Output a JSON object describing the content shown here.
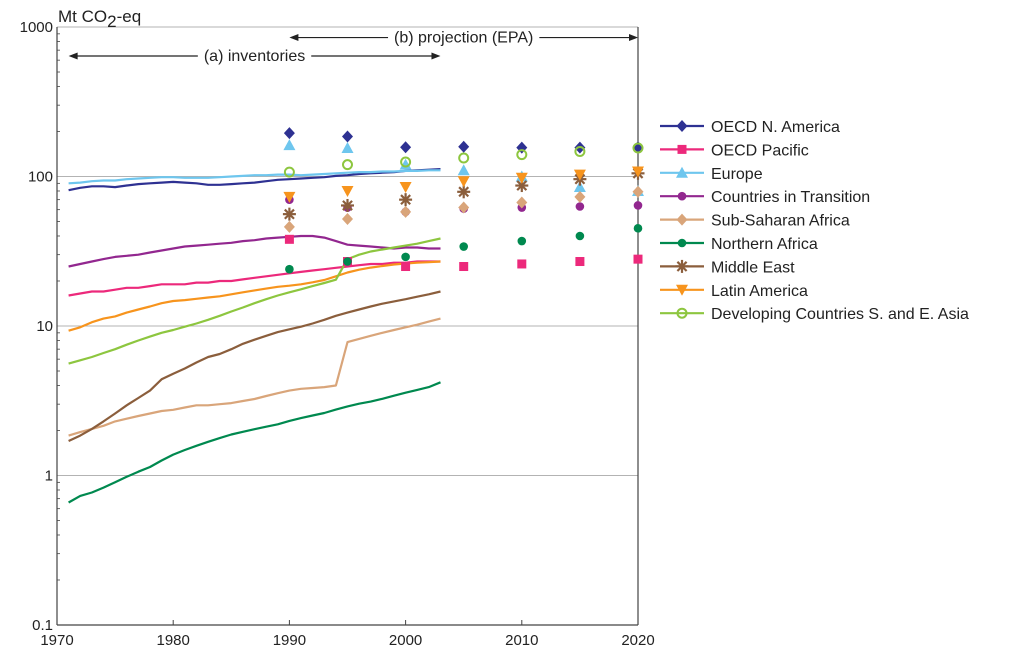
{
  "chart_data": {
    "type": "line",
    "ylabel": {
      "base": "Mt CO",
      "sub": "2",
      "suffix": "-eq"
    },
    "yscale": "log",
    "ylim": [
      0.1,
      1000
    ],
    "xlim": [
      1970,
      2020
    ],
    "yticks": [
      "0.1",
      "1",
      "10",
      "100",
      "1000"
    ],
    "xticks": [
      "1970",
      "1980",
      "1990",
      "2000",
      "2010",
      "2020"
    ],
    "grid": "horizontal",
    "legend": "right",
    "annotations": {
      "projection": {
        "label": "(b) projection (EPA)",
        "from": 1990,
        "to": 2020,
        "y": 850
      },
      "inventories": {
        "label": "(a) inventories",
        "from": 1971,
        "to": 2003,
        "y": 640
      }
    },
    "series": [
      {
        "name": "OECD N. America",
        "color": "#2e3192",
        "marker": "diamond",
        "line_x": [
          1971,
          1972,
          1973,
          1974,
          1975,
          1976,
          1977,
          1978,
          1979,
          1980,
          1981,
          1982,
          1983,
          1984,
          1985,
          1986,
          1987,
          1988,
          1989,
          1990,
          1991,
          1992,
          1993,
          1994,
          1995,
          1996,
          1997,
          1998,
          1999,
          2000,
          2001,
          2002,
          2003
        ],
        "line_y": [
          81,
          84,
          86,
          86,
          85,
          87,
          89,
          90,
          91,
          92,
          91,
          90,
          88,
          88,
          89,
          90,
          91,
          93,
          95,
          96,
          97,
          98,
          99,
          101,
          102,
          104,
          105,
          106,
          107,
          109,
          110,
          111,
          112
        ],
        "proj_x": [
          1990,
          1995,
          2000,
          2005,
          2010,
          2015,
          2020
        ],
        "proj_y": [
          195,
          185,
          157,
          158,
          156,
          156,
          157
        ]
      },
      {
        "name": "OECD Pacific",
        "color": "#ec297b",
        "marker": "square",
        "line_x": [
          1971,
          1972,
          1973,
          1974,
          1975,
          1976,
          1977,
          1978,
          1979,
          1980,
          1981,
          1982,
          1983,
          1984,
          1985,
          1986,
          1987,
          1988,
          1989,
          1990,
          1991,
          1992,
          1993,
          1994,
          1995,
          1996,
          1997,
          1998,
          1999,
          2000,
          2001,
          2002,
          2003
        ],
        "line_y": [
          16,
          16.5,
          17,
          17,
          17.5,
          18,
          18,
          18.5,
          19,
          19,
          19,
          19.5,
          19.5,
          20,
          20,
          20.5,
          21,
          21.5,
          22,
          22.5,
          23,
          23.5,
          24,
          24.5,
          25,
          25.5,
          26,
          26,
          26.5,
          26.5,
          27,
          27,
          27
        ],
        "proj_x": [
          1990,
          1995,
          2000,
          2005,
          2010,
          2015,
          2020
        ],
        "proj_y": [
          38,
          27,
          25,
          25,
          26,
          27,
          28
        ]
      },
      {
        "name": "Europe",
        "color": "#6ec6ee",
        "marker": "triangle-up",
        "line_x": [
          1971,
          1972,
          1973,
          1974,
          1975,
          1976,
          1977,
          1978,
          1979,
          1980,
          1981,
          1982,
          1983,
          1984,
          1985,
          1986,
          1987,
          1988,
          1989,
          1990,
          1991,
          1992,
          1993,
          1994,
          1995,
          1996,
          1997,
          1998,
          1999,
          2000,
          2001,
          2002,
          2003
        ],
        "line_y": [
          90,
          91,
          93,
          94,
          94,
          96,
          97,
          98,
          99,
          99,
          98,
          98,
          98,
          99,
          100,
          101,
          102,
          102,
          103,
          103,
          102,
          103,
          104,
          105,
          106,
          107,
          107,
          108,
          108,
          109,
          109,
          110,
          110
        ],
        "proj_x": [
          1990,
          1995,
          2000,
          2005,
          2010,
          2015,
          2020
        ],
        "proj_y": [
          162,
          155,
          120,
          110,
          100,
          85,
          80
        ]
      },
      {
        "name": "Countries in Transition",
        "color": "#92278f",
        "marker": "circle",
        "line_x": [
          1971,
          1972,
          1973,
          1974,
          1975,
          1976,
          1977,
          1978,
          1979,
          1980,
          1981,
          1982,
          1983,
          1984,
          1985,
          1986,
          1987,
          1988,
          1989,
          1990,
          1991,
          1992,
          1993,
          1994,
          1995,
          1996,
          1997,
          1998,
          1999,
          2000,
          2001,
          2002,
          2003
        ],
        "line_y": [
          25,
          26,
          27,
          28,
          29,
          29.5,
          30,
          31,
          32,
          33,
          34,
          34.5,
          35,
          35.5,
          36,
          37,
          37.5,
          38.5,
          39,
          39.5,
          40,
          40,
          39,
          37,
          35,
          34.5,
          34,
          33.5,
          33,
          33.5,
          33.5,
          33,
          33
        ],
        "proj_x": [
          1990,
          1995,
          2000,
          2005,
          2010,
          2015,
          2020
        ],
        "proj_y": [
          70,
          62,
          58,
          61,
          62,
          63,
          64
        ]
      },
      {
        "name": "Sub-Saharan Africa",
        "color": "#d9a57a",
        "marker": "diamond",
        "line_x": [
          1971,
          1972,
          1973,
          1974,
          1975,
          1976,
          1977,
          1978,
          1979,
          1980,
          1981,
          1982,
          1983,
          1984,
          1985,
          1986,
          1987,
          1988,
          1989,
          1990,
          1991,
          1992,
          1993,
          1994,
          1995,
          1996,
          1997,
          1998,
          1999,
          2000,
          2001,
          2002,
          2003
        ],
        "line_y": [
          1.85,
          1.95,
          2.05,
          2.15,
          2.3,
          2.4,
          2.5,
          2.6,
          2.7,
          2.75,
          2.85,
          2.95,
          2.95,
          3,
          3.05,
          3.15,
          3.25,
          3.4,
          3.55,
          3.7,
          3.8,
          3.85,
          3.9,
          4,
          7.8,
          8.2,
          8.6,
          9,
          9.4,
          9.8,
          10.2,
          10.7,
          11.2
        ],
        "proj_x": [
          1990,
          1995,
          2000,
          2005,
          2010,
          2015,
          2020
        ],
        "proj_y": [
          46,
          52,
          58,
          62,
          67,
          73,
          79
        ]
      },
      {
        "name": "Northern Africa",
        "color": "#00894f",
        "marker": "circle",
        "line_x": [
          1971,
          1972,
          1973,
          1974,
          1975,
          1976,
          1977,
          1978,
          1979,
          1980,
          1981,
          1982,
          1983,
          1984,
          1985,
          1986,
          1987,
          1988,
          1989,
          1990,
          1991,
          1992,
          1993,
          1994,
          1995,
          1996,
          1997,
          1998,
          1999,
          2000,
          2001,
          2002,
          2003
        ],
        "line_y": [
          0.66,
          0.73,
          0.77,
          0.83,
          0.9,
          0.98,
          1.06,
          1.14,
          1.26,
          1.38,
          1.48,
          1.58,
          1.68,
          1.78,
          1.88,
          1.96,
          2.04,
          2.12,
          2.2,
          2.32,
          2.42,
          2.52,
          2.62,
          2.76,
          2.9,
          3.02,
          3.12,
          3.26,
          3.42,
          3.58,
          3.74,
          3.9,
          4.2
        ],
        "proj_x": [
          1990,
          1995,
          2000,
          2005,
          2010,
          2015,
          2020
        ],
        "proj_y": [
          24,
          27,
          29,
          34,
          37,
          40,
          45
        ]
      },
      {
        "name": "Middle East",
        "color": "#8b5e3c",
        "marker": "asterisk",
        "line_x": [
          1971,
          1972,
          1973,
          1974,
          1975,
          1976,
          1977,
          1978,
          1979,
          1980,
          1981,
          1982,
          1983,
          1984,
          1985,
          1986,
          1987,
          1988,
          1989,
          1990,
          1991,
          1992,
          1993,
          1994,
          1995,
          1996,
          1997,
          1998,
          1999,
          2000,
          2001,
          2002,
          2003
        ],
        "line_y": [
          1.7,
          1.85,
          2.05,
          2.3,
          2.6,
          2.95,
          3.3,
          3.7,
          4.4,
          4.8,
          5.2,
          5.7,
          6.2,
          6.5,
          7,
          7.6,
          8.1,
          8.6,
          9.1,
          9.5,
          9.9,
          10.4,
          11,
          11.7,
          12.3,
          12.9,
          13.5,
          14.1,
          14.6,
          15.1,
          15.7,
          16.3,
          17
        ],
        "proj_x": [
          1990,
          1995,
          2000,
          2005,
          2010,
          2015,
          2020
        ],
        "proj_y": [
          56,
          64,
          70,
          79,
          87,
          96,
          105
        ]
      },
      {
        "name": "Latin America",
        "color": "#f7941d",
        "marker": "triangle-down",
        "line_x": [
          1971,
          1972,
          1973,
          1974,
          1975,
          1976,
          1977,
          1978,
          1979,
          1980,
          1981,
          1982,
          1983,
          1984,
          1985,
          1986,
          1987,
          1988,
          1989,
          1990,
          1991,
          1992,
          1993,
          1994,
          1995,
          1996,
          1997,
          1998,
          1999,
          2000,
          2001,
          2002,
          2003
        ],
        "line_y": [
          9.3,
          9.8,
          10.6,
          11.2,
          11.6,
          12.3,
          12.9,
          13.5,
          14.2,
          14.7,
          14.9,
          15.2,
          15.5,
          15.8,
          16.3,
          16.8,
          17.3,
          17.8,
          18.3,
          18.6,
          19,
          19.6,
          20.3,
          21.5,
          22.8,
          23.8,
          24.6,
          25.2,
          25.8,
          26.2,
          26.5,
          26.7,
          27
        ],
        "proj_x": [
          1990,
          1995,
          2000,
          2005,
          2010,
          2015,
          2020
        ],
        "proj_y": [
          73,
          80,
          85,
          93,
          98,
          103,
          108
        ]
      },
      {
        "name": "Developing Countries S. and E. Asia",
        "color": "#8dc63f",
        "marker": "circle-open",
        "line_x": [
          1971,
          1972,
          1973,
          1974,
          1975,
          1976,
          1977,
          1978,
          1979,
          1980,
          1981,
          1982,
          1983,
          1984,
          1985,
          1986,
          1987,
          1988,
          1989,
          1990,
          1991,
          1992,
          1993,
          1994,
          1995,
          1996,
          1997,
          1998,
          1999,
          2000,
          2001,
          2002,
          2003
        ],
        "line_y": [
          5.6,
          5.9,
          6.2,
          6.6,
          7,
          7.5,
          8,
          8.5,
          9,
          9.4,
          9.9,
          10.4,
          11,
          11.7,
          12.5,
          13.3,
          14.2,
          15.1,
          16,
          16.8,
          17.6,
          18.5,
          19.4,
          20.4,
          28,
          30,
          31.5,
          32.5,
          33.5,
          34.5,
          35.5,
          37,
          38.5
        ],
        "proj_x": [
          1990,
          1995,
          2000,
          2005,
          2010,
          2015,
          2020
        ],
        "proj_y": [
          107,
          120,
          125,
          133,
          140,
          147,
          155
        ]
      }
    ]
  }
}
